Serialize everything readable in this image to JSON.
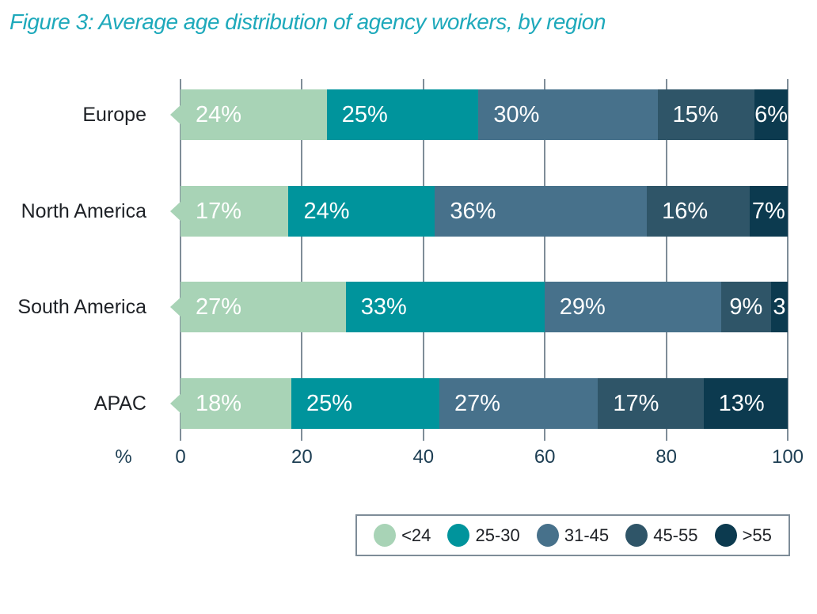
{
  "title": "Figure 3: Average age distribution of agency workers, by region",
  "chart_data": {
    "type": "bar",
    "variant": "horizontal-stacked",
    "title": "Figure 3: Average age distribution of agency workers, by region",
    "categories": [
      "Europe",
      "North America",
      "South America",
      "APAC"
    ],
    "series": [
      {
        "name": "<24",
        "color": "#a8d3b6",
        "values": [
          24,
          17,
          27,
          18
        ],
        "labels": [
          "24%",
          "17%",
          "27%",
          "18%"
        ]
      },
      {
        "name": "25-30",
        "color": "#00949c",
        "values": [
          25,
          24,
          33,
          25
        ],
        "labels": [
          "25%",
          "24%",
          "33%",
          "25%"
        ]
      },
      {
        "name": "31-45",
        "color": "#47718b",
        "values": [
          30,
          36,
          29,
          27
        ],
        "labels": [
          "30%",
          "36%",
          "29%",
          "27%"
        ]
      },
      {
        "name": "45-55",
        "color": "#2f5568",
        "values": [
          15,
          16,
          9,
          17
        ],
        "labels": [
          "15%",
          "16%",
          "9%",
          "17%"
        ]
      },
      {
        "name": ">55",
        "color": "#0c3a4f",
        "values": [
          6,
          7,
          3,
          13
        ],
        "labels": [
          "6%",
          "7%",
          "3",
          "13%"
        ]
      }
    ],
    "xlabel": "%",
    "x_ticks": [
      0,
      20,
      40,
      60,
      80,
      100
    ],
    "xlim": [
      0,
      100
    ],
    "grid": true,
    "legend_position": "bottom-right",
    "bar_label_color": "#ffffff"
  },
  "colors": {
    "title": "#1ea9bb",
    "row_label_text": "#1e2126",
    "axis_text": "#1d3e53",
    "gridline": "#7f8d98",
    "legend_border": "#7e8c98",
    "legend_text": "#1e2126"
  }
}
